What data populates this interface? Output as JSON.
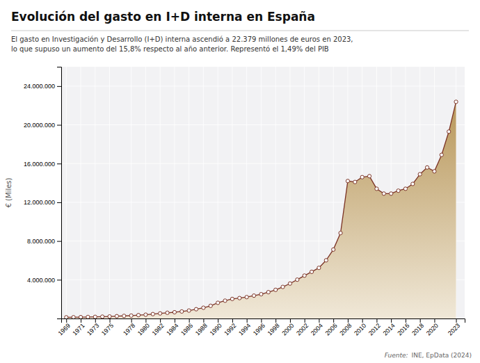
{
  "chart_data": {
    "type": "area",
    "title": "Evolución del gasto en I+D interna en España",
    "subtitle": [
      "El gasto en Investigación y Desarrollo (I+D) interna ascendió a 22.379 millones de euros en 2023,",
      "lo que supuso un aumento del 15,8% respecto al año anterior. Representó el 1,49% del PIB"
    ],
    "ylabel": "€ (Miles)",
    "source_label": "Fuente:",
    "source": "INE, EpData (2024)",
    "x": [
      1969,
      1970,
      1971,
      1972,
      1973,
      1974,
      1975,
      1976,
      1977,
      1978,
      1979,
      1980,
      1981,
      1982,
      1983,
      1984,
      1985,
      1986,
      1987,
      1988,
      1989,
      1990,
      1991,
      1992,
      1993,
      1994,
      1995,
      1996,
      1997,
      1998,
      1999,
      2000,
      2001,
      2002,
      2003,
      2004,
      2005,
      2006,
      2007,
      2008,
      2009,
      2010,
      2011,
      2012,
      2013,
      2014,
      2015,
      2016,
      2017,
      2018,
      2019,
      2020,
      2021,
      2022,
      2023
    ],
    "values": [
      121000,
      130000,
      141000,
      155000,
      168000,
      188000,
      210000,
      240000,
      268000,
      300000,
      345000,
      392000,
      455000,
      525000,
      590000,
      648000,
      725000,
      820000,
      960000,
      1110000,
      1310000,
      1620000,
      1840000,
      2020000,
      2110000,
      2210000,
      2360000,
      2510000,
      2720000,
      2960000,
      3260000,
      3610000,
      4010000,
      4430000,
      4820000,
      5230000,
      6010000,
      7120000,
      8830000,
      14200000,
      14100000,
      14600000,
      14700000,
      13400000,
      12900000,
      12900000,
      13200000,
      13400000,
      13900000,
      14900000,
      15600000,
      15200000,
      16900000,
      19300000,
      22379000
    ],
    "color": "#7b3325",
    "marker": "circle",
    "xlim": [
      1968.3,
      2024.2
    ],
    "xticks": [
      1969,
      1971,
      1973,
      1975,
      1978,
      1980,
      1982,
      1984,
      1986,
      1988,
      1990,
      1992,
      1994,
      1996,
      1998,
      2000,
      2002,
      2004,
      2006,
      2008,
      2010,
      2012,
      2014,
      2016,
      2018,
      2020,
      2023
    ],
    "ylim": [
      0,
      26000000
    ],
    "yticks": [
      {
        "value": 4000000,
        "label": "4.000.000"
      },
      {
        "value": 8000000,
        "label": "8.000.000"
      },
      {
        "value": 12000000,
        "label": "12.000.000"
      },
      {
        "value": 16000000,
        "label": "16.000.000"
      },
      {
        "value": 20000000,
        "label": "20.000.000"
      },
      {
        "value": 24000000,
        "label": "24.000.000"
      }
    ],
    "grid": true
  }
}
